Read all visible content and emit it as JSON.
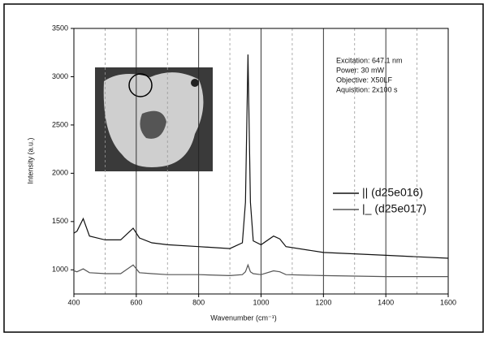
{
  "chart_data": {
    "type": "line",
    "x_label": "Wavenumber (cm⁻¹)",
    "y_label": "Intensity (a.u.)",
    "annotations": [
      "Excitation: 647.1 nm",
      "Power: 30 mW",
      "Objective: X50LF",
      "Aquisition: 2x100 s"
    ],
    "x": [
      400,
      410,
      430,
      450,
      500,
      550,
      590,
      610,
      650,
      700,
      800,
      900,
      940,
      950,
      958,
      966,
      975,
      1000,
      1040,
      1060,
      1080,
      1200,
      1400,
      1600
    ],
    "series": [
      {
        "name": "|| (d25e016)",
        "color": "#111111",
        "values": [
          1380,
          1400,
          1530,
          1350,
          1310,
          1310,
          1430,
          1330,
          1280,
          1260,
          1240,
          1220,
          1280,
          1700,
          3230,
          1700,
          1300,
          1260,
          1350,
          1320,
          1240,
          1180,
          1150,
          1120
        ]
      },
      {
        "name": "|_ (d25e017)",
        "color": "#555555",
        "values": [
          990,
          980,
          1010,
          970,
          960,
          960,
          1050,
          970,
          960,
          950,
          950,
          940,
          950,
          980,
          1050,
          980,
          960,
          950,
          990,
          980,
          950,
          940,
          930,
          930
        ]
      }
    ],
    "xlim": [
      400,
      1600
    ],
    "xticks": [
      400,
      600,
      800,
      1000,
      1200,
      1400,
      1600
    ],
    "xminorticks": [
      500,
      700,
      900,
      1100,
      1300,
      1500
    ],
    "ylim": [
      750,
      3500
    ],
    "yticks": [
      1000,
      1500,
      2000,
      2500,
      3000,
      3500
    ],
    "grid": true,
    "legend": "right"
  }
}
